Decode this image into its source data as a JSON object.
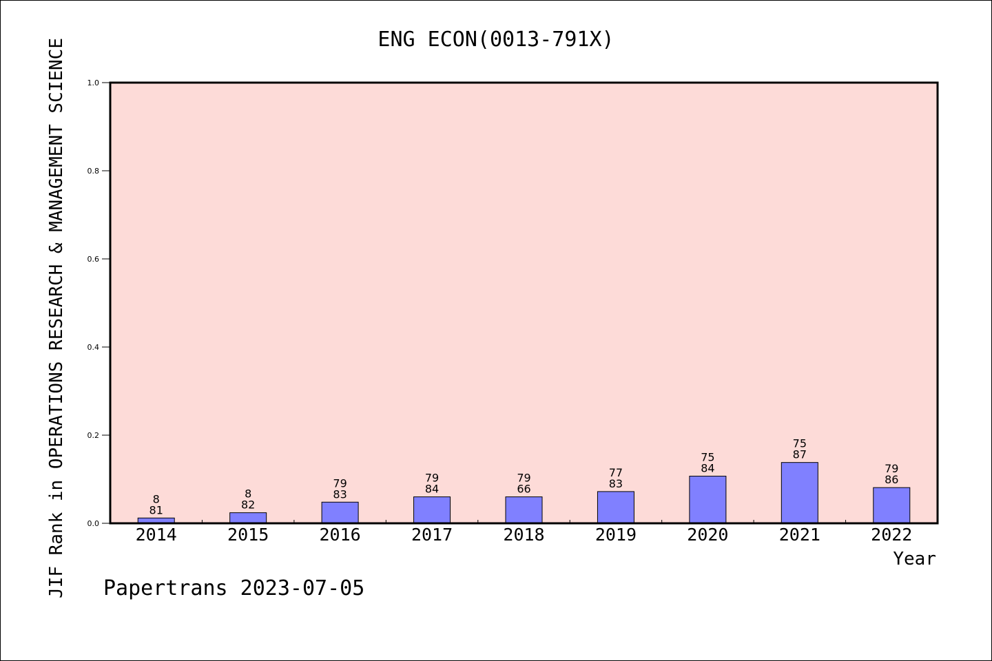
{
  "chart_data": {
    "type": "bar",
    "title": "ENG ECON(0013-791X)",
    "xlabel": "Year",
    "ylabel": "JIF Rank in OPERATIONS RESEARCH & MANAGEMENT SCIENCE",
    "categories": [
      "2014",
      "2015",
      "2016",
      "2017",
      "2018",
      "2019",
      "2020",
      "2021",
      "2022"
    ],
    "values": [
      0.012,
      0.024,
      0.048,
      0.06,
      0.06,
      0.072,
      0.107,
      0.138,
      0.081
    ],
    "bar_labels": [
      [
        "8",
        "81"
      ],
      [
        "8",
        "82"
      ],
      [
        "79",
        "83"
      ],
      [
        "79",
        "84"
      ],
      [
        "79",
        "66"
      ],
      [
        "77",
        "83"
      ],
      [
        "75",
        "84"
      ],
      [
        "75",
        "87"
      ],
      [
        "79",
        "86"
      ]
    ],
    "ylim": [
      0,
      1.0
    ],
    "yticks": [
      "0.0",
      "0.2",
      "0.4",
      "0.6",
      "0.8",
      "1.0"
    ],
    "grid": false,
    "colors": {
      "plot_background": "#fddbd8",
      "bar_fill": "#8080ff",
      "bar_stroke": "#000000"
    }
  },
  "footer": "Papertrans 2023-07-05"
}
